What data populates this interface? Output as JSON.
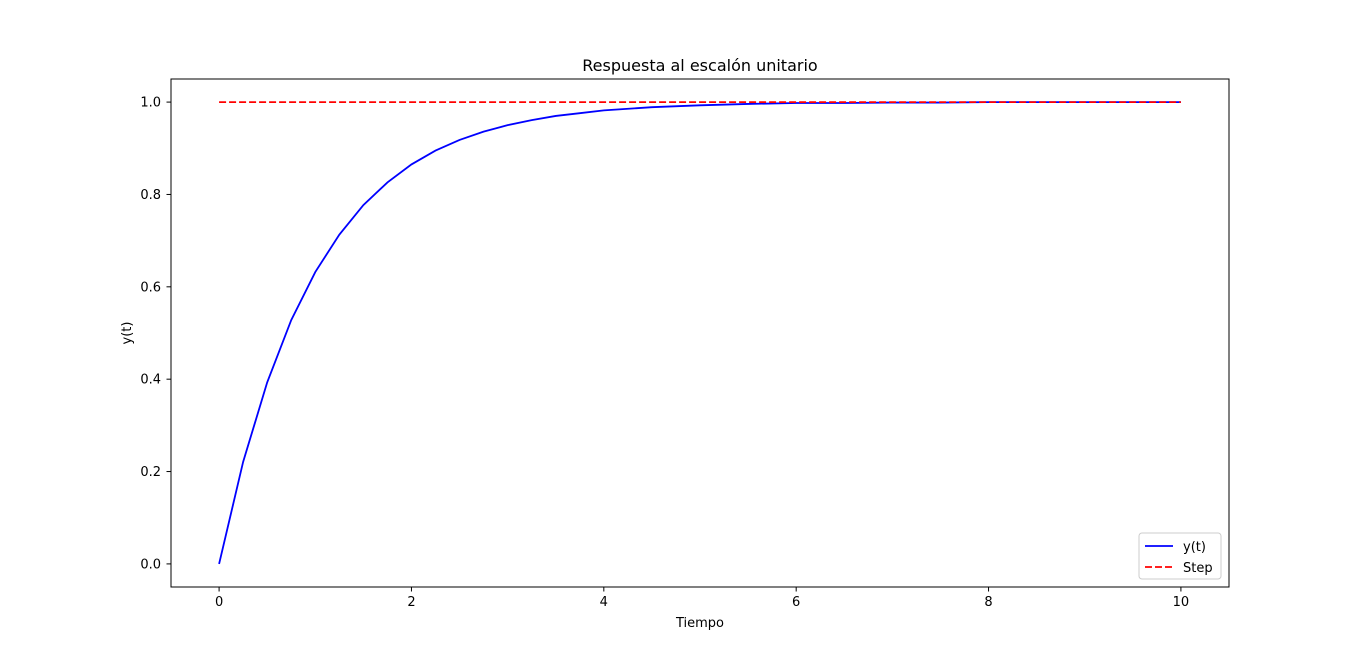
{
  "chart_data": {
    "type": "line",
    "title": "Respuesta al escalón unitario",
    "xlabel": "Tiempo",
    "ylabel": "y(t)",
    "xlim": [
      -0.5,
      10.5
    ],
    "ylim": [
      -0.05,
      1.05
    ],
    "xticks": [
      0,
      2,
      4,
      6,
      8,
      10
    ],
    "yticks": [
      0.0,
      0.2,
      0.4,
      0.6,
      0.8,
      1.0
    ],
    "xtick_labels": [
      "0",
      "2",
      "4",
      "6",
      "8",
      "10"
    ],
    "ytick_labels": [
      "0.0",
      "0.2",
      "0.4",
      "0.6",
      "0.8",
      "1.0"
    ],
    "grid": false,
    "legend_position": "lower-right",
    "series": [
      {
        "name": "y(t)",
        "color": "#0000ff",
        "style": "solid",
        "x": [
          0,
          0.25,
          0.5,
          0.75,
          1,
          1.25,
          1.5,
          1.75,
          2,
          2.25,
          2.5,
          2.75,
          3,
          3.25,
          3.5,
          3.75,
          4,
          4.5,
          5,
          5.5,
          6,
          6.5,
          7,
          7.5,
          8,
          8.5,
          9,
          9.5,
          10
        ],
        "y": [
          0,
          0.221,
          0.393,
          0.528,
          0.632,
          0.713,
          0.777,
          0.826,
          0.865,
          0.895,
          0.918,
          0.936,
          0.95,
          0.961,
          0.97,
          0.976,
          0.982,
          0.989,
          0.993,
          0.996,
          0.998,
          0.998,
          0.999,
          0.999,
          1.0,
          1.0,
          1.0,
          1.0,
          1.0
        ]
      },
      {
        "name": "Step",
        "color": "#ff0000",
        "style": "dashed",
        "x": [
          0,
          10
        ],
        "y": [
          1,
          1
        ]
      }
    ]
  }
}
